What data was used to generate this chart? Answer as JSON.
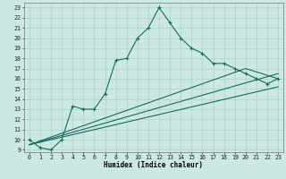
{
  "xlabel": "Humidex (Indice chaleur)",
  "ylabel": "",
  "bg_color": "#cce8e4",
  "grid_color": "#aad4cc",
  "line_color": "#1a6b5a",
  "xmin": -0.5,
  "xmax": 23.5,
  "ymin": 8.8,
  "ymax": 23.5,
  "main_x": [
    0,
    1,
    2,
    3,
    4,
    5,
    6,
    7,
    8,
    9,
    10,
    11,
    12,
    13,
    14,
    15,
    16,
    17,
    18,
    19,
    20,
    21,
    22,
    23
  ],
  "main_y": [
    10,
    9.2,
    9.0,
    10.0,
    13.3,
    13.0,
    13.0,
    14.5,
    17.8,
    18.0,
    20.0,
    21.0,
    23.0,
    21.5,
    20.0,
    19.0,
    18.5,
    17.5,
    17.5,
    17.0,
    16.5,
    16.0,
    15.5,
    16.0
  ],
  "line2_x": [
    0,
    23
  ],
  "line2_y": [
    9.5,
    16.5
  ],
  "line3_x": [
    0,
    20,
    23
  ],
  "line3_y": [
    9.5,
    17.0,
    16.0
  ],
  "line4_x": [
    0,
    23
  ],
  "line4_y": [
    9.5,
    15.2
  ],
  "xticks": [
    0,
    1,
    2,
    3,
    4,
    5,
    6,
    7,
    8,
    9,
    10,
    11,
    12,
    13,
    14,
    15,
    16,
    17,
    18,
    19,
    20,
    21,
    22,
    23
  ],
  "yticks": [
    9,
    10,
    11,
    12,
    13,
    14,
    15,
    16,
    17,
    18,
    19,
    20,
    21,
    22,
    23
  ],
  "xlabel_fontsize": 5.5,
  "tick_fontsize": 4.8,
  "linewidth": 0.8,
  "markersize": 3.0
}
